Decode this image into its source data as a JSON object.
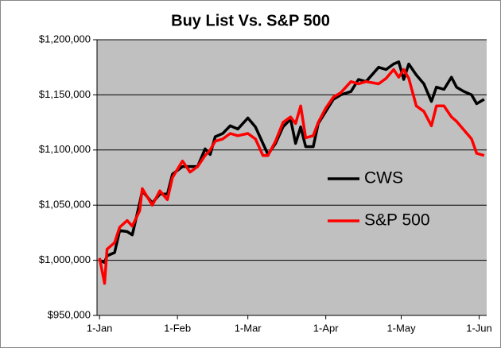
{
  "chart_data": {
    "type": "line",
    "title": "Buy List Vs. S&P 500",
    "x": [
      0,
      2,
      3,
      6,
      8,
      11,
      13,
      16,
      17,
      21,
      24,
      27,
      29,
      33,
      36,
      39,
      42,
      44,
      46,
      49,
      52,
      55,
      59,
      62,
      65,
      67,
      70,
      73,
      76,
      78,
      80,
      82,
      85,
      87,
      90,
      93,
      96,
      100,
      103,
      106,
      111,
      114,
      117,
      119,
      121,
      123,
      126,
      129,
      132,
      134,
      137,
      140,
      142,
      145,
      148,
      150,
      153
    ],
    "xlim": [
      -1,
      154
    ],
    "xticks": [
      {
        "value": 0,
        "label": "1-Jan"
      },
      {
        "value": 31,
        "label": "1-Feb"
      },
      {
        "value": 59,
        "label": "1-Mar"
      },
      {
        "value": 90,
        "label": "1-Apr"
      },
      {
        "value": 120,
        "label": "1-May"
      },
      {
        "value": 151,
        "label": "1-Jun"
      }
    ],
    "ylim": [
      950000,
      1200000
    ],
    "yticks": [
      {
        "value": 950000,
        "label": "$950,000"
      },
      {
        "value": 1000000,
        "label": "$1,000,000"
      },
      {
        "value": 1050000,
        "label": "$1,050,000"
      },
      {
        "value": 1100000,
        "label": "$1,100,000"
      },
      {
        "value": 1150000,
        "label": "$1,150,000"
      },
      {
        "value": 1200000,
        "label": "$1,200,000"
      }
    ],
    "grid": true,
    "legend": "right",
    "series": [
      {
        "name": "CWS",
        "color": "#000000",
        "values": [
          1000000,
          998000,
          1004000,
          1007000,
          1027000,
          1026000,
          1023000,
          1052000,
          1063000,
          1052000,
          1060000,
          1060000,
          1078000,
          1085000,
          1085000,
          1085000,
          1101000,
          1096000,
          1112000,
          1115000,
          1122000,
          1119000,
          1129000,
          1121000,
          1106000,
          1096000,
          1106000,
          1121000,
          1128000,
          1106000,
          1121000,
          1103000,
          1103000,
          1124000,
          1135000,
          1146000,
          1150000,
          1153000,
          1164000,
          1162000,
          1175000,
          1173000,
          1178000,
          1180000,
          1164000,
          1178000,
          1168000,
          1160000,
          1144000,
          1157000,
          1155000,
          1166000,
          1157000,
          1153000,
          1150000,
          1142000,
          1146000
        ]
      },
      {
        "name": "S&P 500",
        "color": "#ff0000",
        "values": [
          1002000,
          979000,
          1010000,
          1016000,
          1030000,
          1036000,
          1031000,
          1045000,
          1065000,
          1050000,
          1063000,
          1055000,
          1075000,
          1090000,
          1080000,
          1085000,
          1095000,
          1100000,
          1108000,
          1110000,
          1115000,
          1113000,
          1115000,
          1110000,
          1095000,
          1095000,
          1108000,
          1125000,
          1130000,
          1124000,
          1140000,
          1111000,
          1113000,
          1125000,
          1138000,
          1148000,
          1152000,
          1162000,
          1160000,
          1162000,
          1160000,
          1165000,
          1173000,
          1166000,
          1173000,
          1165000,
          1140000,
          1135000,
          1122000,
          1140000,
          1140000,
          1130000,
          1126000,
          1118000,
          1110000,
          1097000,
          1095000
        ]
      }
    ]
  }
}
